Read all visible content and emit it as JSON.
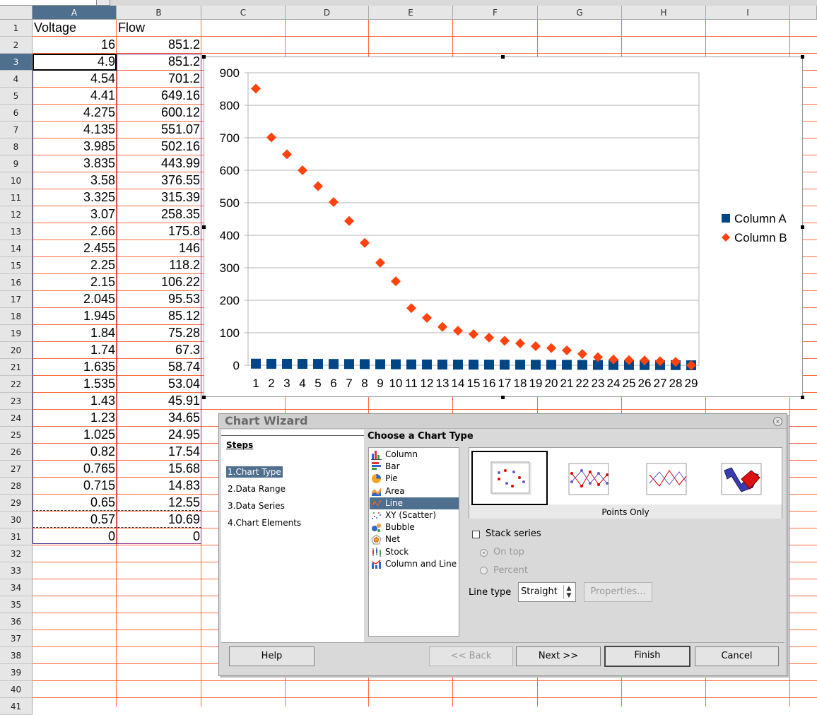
{
  "sheet": {
    "columns": [
      "A",
      "B",
      "C",
      "D",
      "E",
      "F",
      "G",
      "H",
      "I"
    ],
    "rows": [
      "1",
      "2",
      "3",
      "4",
      "5",
      "6",
      "7",
      "8",
      "9",
      "10",
      "11",
      "12",
      "13",
      "14",
      "15",
      "16",
      "17",
      "18",
      "19",
      "20",
      "21",
      "22",
      "23",
      "24",
      "25",
      "26",
      "27",
      "28",
      "29",
      "30",
      "31",
      "32",
      "33",
      "34",
      "35",
      "36",
      "37",
      "38",
      "39",
      "40",
      "41"
    ],
    "headers": {
      "a": "Voltage",
      "b": "Flow"
    },
    "col_a": [
      "16",
      "4.9",
      "4.54",
      "4.41",
      "4.275",
      "4.135",
      "3.985",
      "3.835",
      "3.58",
      "3.325",
      "3.07",
      "2.66",
      "2.455",
      "2.25",
      "2.15",
      "2.045",
      "1.945",
      "1.84",
      "1.74",
      "1.635",
      "1.535",
      "1.43",
      "1.23",
      "1.025",
      "0.82",
      "0.765",
      "0.715",
      "0.65",
      "0.57",
      "0"
    ],
    "col_b": [
      "851.2",
      "851.2",
      "701.2",
      "649.16",
      "600.12",
      "551.07",
      "502.16",
      "443.99",
      "376.55",
      "315.39",
      "258.35",
      "175.8",
      "146",
      "118.2",
      "106.22",
      "95.53",
      "85.12",
      "75.28",
      "67.3",
      "58.74",
      "53.04",
      "45.91",
      "34.65",
      "24.95",
      "17.54",
      "15.68",
      "14.83",
      "12.55",
      "10.69",
      "0"
    ]
  },
  "chart_data": {
    "type": "scatter",
    "x": [
      1,
      2,
      3,
      4,
      5,
      6,
      7,
      8,
      9,
      10,
      11,
      12,
      13,
      14,
      15,
      16,
      17,
      18,
      19,
      20,
      21,
      22,
      23,
      24,
      25,
      26,
      27,
      28,
      29
    ],
    "series": [
      {
        "name": "Column A",
        "color": "#004586",
        "marker": "square",
        "values": [
          4.9,
          4.54,
          4.41,
          4.275,
          4.135,
          3.985,
          3.835,
          3.58,
          3.325,
          3.07,
          2.66,
          2.455,
          2.25,
          2.15,
          2.045,
          1.945,
          1.84,
          1.74,
          1.635,
          1.535,
          1.43,
          1.23,
          1.025,
          0.82,
          0.765,
          0.715,
          0.65,
          0.57,
          0
        ]
      },
      {
        "name": "Column B",
        "color": "#ff420e",
        "marker": "diamond",
        "values": [
          851.2,
          701.2,
          649.16,
          600.12,
          551.07,
          502.16,
          443.99,
          376.55,
          315.39,
          258.35,
          175.8,
          146,
          118.2,
          106.22,
          95.53,
          85.12,
          75.28,
          67.3,
          58.74,
          53.04,
          45.91,
          34.65,
          24.95,
          17.54,
          15.68,
          14.83,
          12.55,
          10.69,
          0
        ]
      }
    ],
    "ylim": [
      0,
      900
    ],
    "yticks": [
      "0",
      "100",
      "200",
      "300",
      "400",
      "500",
      "600",
      "700",
      "800",
      "900"
    ],
    "xticks": [
      "1",
      "2",
      "3",
      "4",
      "5",
      "6",
      "7",
      "8",
      "9",
      "10",
      "11",
      "12",
      "13",
      "14",
      "15",
      "16",
      "17",
      "18",
      "19",
      "20",
      "21",
      "22",
      "23",
      "24",
      "25",
      "26",
      "27",
      "28",
      "29"
    ],
    "grid": true,
    "legend": "right"
  },
  "wizard": {
    "title": "Chart Wizard",
    "steps_title": "Steps",
    "steps": [
      "1.Chart Type",
      "2.Data Range",
      "3.Data Series",
      "4.Chart Elements"
    ],
    "choose_label": "Choose a Chart Type",
    "chart_types": [
      "Column",
      "Bar",
      "Pie",
      "Area",
      "Line",
      "XY (Scatter)",
      "Bubble",
      "Net",
      "Stock",
      "Column and Line"
    ],
    "selected_type": "Line",
    "variant_label": "Points Only",
    "stack_series": "Stack series",
    "on_top": "On top",
    "percent": "Percent",
    "line_type_label": "Line type",
    "line_type_value": "Straight",
    "properties": "Properties...",
    "help": "Help",
    "back": "<< Back",
    "next": "Next >>",
    "finish": "Finish",
    "cancel": "Cancel"
  }
}
